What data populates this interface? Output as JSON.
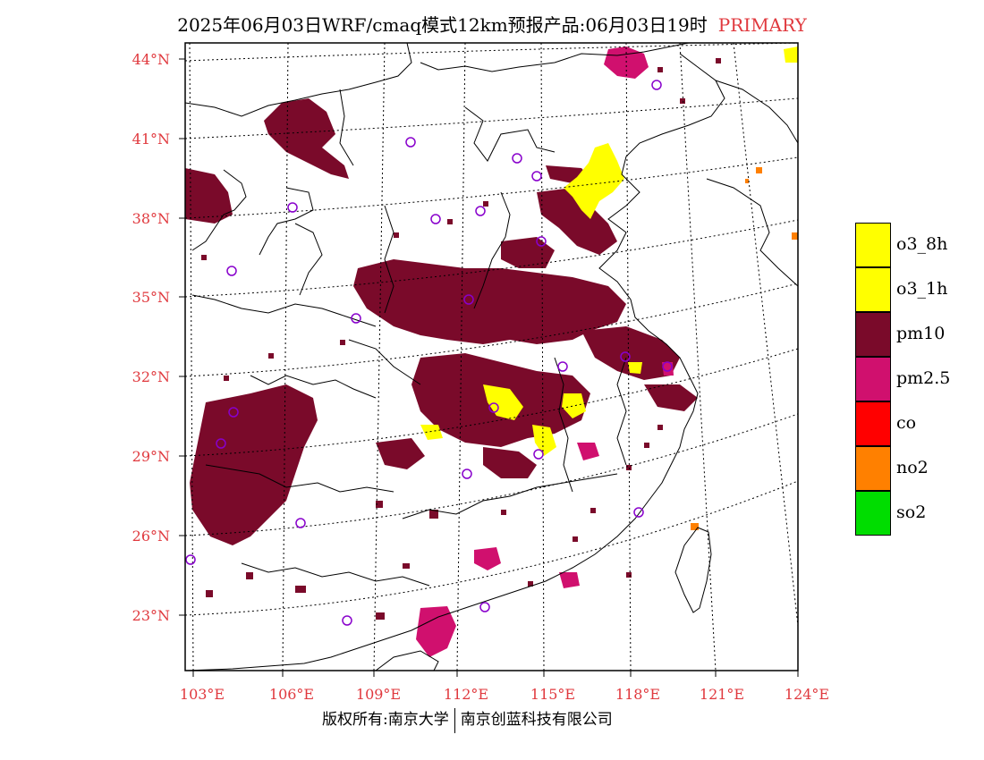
{
  "title": {
    "main": "2025年06月03日WRF/cmaq模式12km预报产品:06月03日19时",
    "tag": "PRIMARY"
  },
  "colors": {
    "tick_label": "#e0393e",
    "o3_8h": "#ffff00",
    "o3_1h": "#ffff00",
    "pm10": "#7a0a2a",
    "pm25": "#d0106e",
    "co": "#ff0000",
    "no2": "#ff8000",
    "so2": "#00dd00",
    "station": "#8800cc"
  },
  "axes": {
    "lat_labels": [
      "44°N",
      "41°N",
      "38°N",
      "35°N",
      "32°N",
      "29°N",
      "26°N",
      "23°N"
    ],
    "lon_labels": [
      "103°E",
      "106°E",
      "109°E",
      "112°E",
      "115°E",
      "118°E",
      "121°E",
      "124°E"
    ]
  },
  "legend": [
    {
      "label": "o3_8h",
      "color": "#ffff00"
    },
    {
      "label": "o3_1h",
      "color": "#ffff00"
    },
    {
      "label": "pm10",
      "color": "#7a0a2a"
    },
    {
      "label": "pm2.5",
      "color": "#d0106e"
    },
    {
      "label": "co",
      "color": "#ff0000"
    },
    {
      "label": "no2",
      "color": "#ff8000"
    },
    {
      "label": "so2",
      "color": "#00dd00"
    }
  ],
  "footer": {
    "left": "版权所有:南京大学",
    "right": "南京创蓝科技有限公司"
  }
}
